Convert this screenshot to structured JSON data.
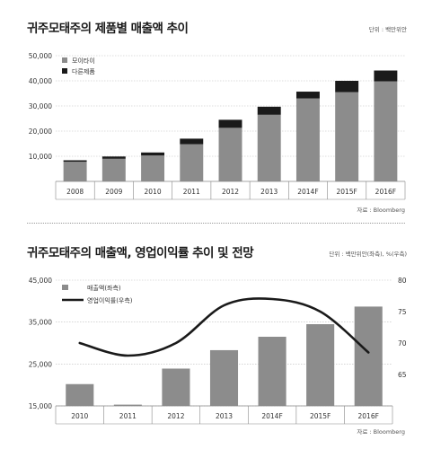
{
  "chart_data": [
    {
      "type": "bar",
      "stacked": true,
      "title": "귀주모태주의 제품별 매출액 추이",
      "unit_note": "단위 : 백만위안",
      "source": "자료 : Bloomberg",
      "categories": [
        "2008",
        "2009",
        "2010",
        "2011",
        "2012",
        "2013",
        "2014F",
        "2015F",
        "2016F"
      ],
      "series": [
        {
          "name": "모이타이",
          "color": "#8c8c8c",
          "values": [
            7800,
            9000,
            10300,
            14800,
            21300,
            26500,
            33000,
            35500,
            39800
          ]
        },
        {
          "name": "다른제품",
          "color": "#1a1a1a",
          "values": [
            600,
            900,
            1200,
            2200,
            3200,
            3200,
            2700,
            4500,
            4300
          ]
        }
      ],
      "ylim": [
        0,
        50000
      ],
      "yticks": [
        "10,000",
        "20,000",
        "30,000",
        "40,000",
        "50,000"
      ],
      "ytick_values": [
        10000,
        20000,
        30000,
        40000,
        50000
      ],
      "grid": true,
      "legend": "top-left"
    },
    {
      "type": "bar+line",
      "title": "귀주모태주의 매출액, 영업이익률 추이 및 전망",
      "unit_note": "단위 : 백만위안(좌측), %(우측)",
      "source": "자료 : Bloomberg",
      "categories": [
        "2010",
        "2011",
        "2012",
        "2013",
        "2014F",
        "2015F",
        "2016F"
      ],
      "series": [
        {
          "name": "매출액(좌측)",
          "type": "bar",
          "axis": "left",
          "color": "#8c8c8c",
          "values": [
            20200,
            15300,
            23900,
            28300,
            31500,
            34500,
            38700
          ]
        },
        {
          "name": "영업이익률(우측)",
          "type": "line",
          "axis": "right",
          "color": "#1a1a1a",
          "values": [
            70,
            68,
            70,
            76,
            77,
            75,
            68.5
          ]
        }
      ],
      "ylim_left": [
        15000,
        45000
      ],
      "yticks_left": [
        "15,000",
        "25,000",
        "35,000",
        "45,000"
      ],
      "ytick_values_left": [
        15000,
        25000,
        35000,
        45000
      ],
      "ylim_right": [
        60,
        80
      ],
      "yticks_right": [
        "65",
        "70",
        "75",
        "80"
      ],
      "ytick_values_right": [
        65,
        70,
        75,
        80
      ],
      "grid": true,
      "legend": "top-left"
    }
  ]
}
